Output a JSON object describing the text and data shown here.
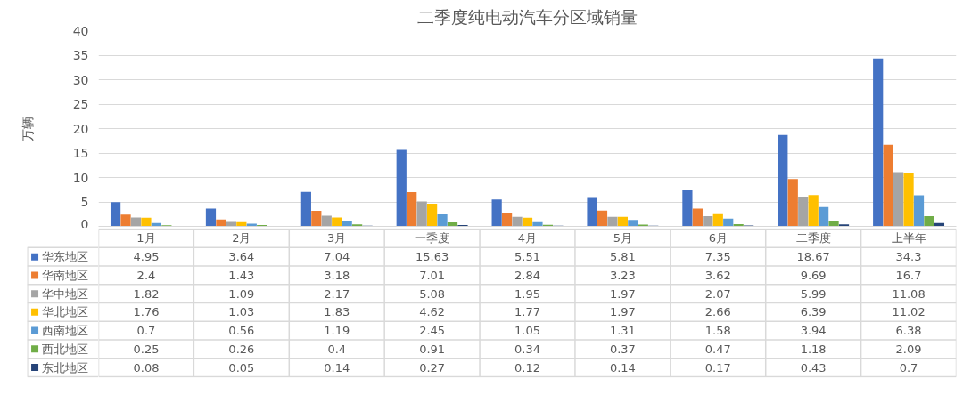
{
  "chart_data": {
    "type": "bar",
    "title": "二季度纯电动汽车分区域销量",
    "ylabel": "万辆",
    "categories": [
      "1月",
      "2月",
      "3月",
      "一季度",
      "4月",
      "5月",
      "6月",
      "二季度",
      "上半年"
    ],
    "series": [
      {
        "name": "华东地区",
        "color": "#4472c4",
        "values": [
          4.95,
          3.64,
          7.04,
          15.63,
          5.51,
          5.81,
          7.35,
          18.67,
          34.3
        ]
      },
      {
        "name": "华南地区",
        "color": "#ed7d31",
        "values": [
          2.4,
          1.43,
          3.18,
          7.01,
          2.84,
          3.23,
          3.62,
          9.69,
          16.7
        ]
      },
      {
        "name": "华中地区",
        "color": "#a5a5a5",
        "values": [
          1.82,
          1.09,
          2.17,
          5.08,
          1.95,
          1.97,
          2.07,
          5.99,
          11.08
        ]
      },
      {
        "name": "华北地区",
        "color": "#ffc000",
        "values": [
          1.76,
          1.03,
          1.83,
          4.62,
          1.77,
          1.97,
          2.66,
          6.39,
          11.02
        ]
      },
      {
        "name": "西南地区",
        "color": "#5b9bd5",
        "values": [
          0.7,
          0.56,
          1.19,
          2.45,
          1.05,
          1.31,
          1.58,
          3.94,
          6.38
        ]
      },
      {
        "name": "西北地区",
        "color": "#70ad47",
        "values": [
          0.25,
          0.26,
          0.4,
          0.91,
          0.34,
          0.37,
          0.47,
          1.18,
          2.09
        ]
      },
      {
        "name": "东北地区",
        "color": "#264478",
        "values": [
          0.08,
          0.05,
          0.14,
          0.27,
          0.12,
          0.14,
          0.17,
          0.43,
          0.7
        ]
      }
    ],
    "ylim": [
      0,
      40
    ],
    "yticks": [
      0,
      5,
      10,
      15,
      20,
      25,
      30,
      35,
      40
    ],
    "grid": "y",
    "legend": "bottom left",
    "data_labels": true
  }
}
